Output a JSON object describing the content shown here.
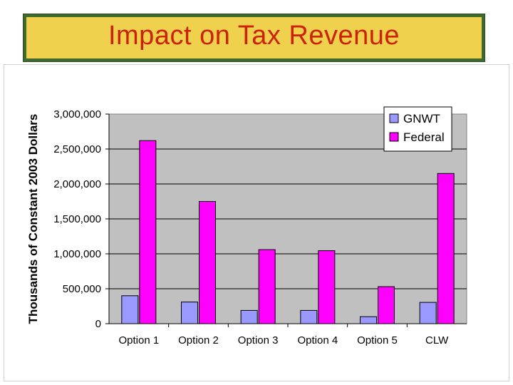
{
  "slide": {
    "title": "Impact on Tax Revenue"
  },
  "colors": {
    "title_bg": "#efd14e",
    "title_border": "#3e6a2f",
    "title_text": "#cc2200",
    "plot_bg": "#c0c0c0",
    "gnwt": "#9999ff",
    "federal": "#ff00ff"
  },
  "chart_data": {
    "type": "bar",
    "title": "",
    "xlabel": "",
    "ylabel": "Thousands of Constant 2003 Dollars",
    "categories": [
      "Option 1",
      "Option 2",
      "Option 3",
      "Option 4",
      "Option 5",
      "CLW"
    ],
    "series": [
      {
        "name": "GNWT",
        "values": [
          400000,
          310000,
          190000,
          190000,
          100000,
          305000
        ]
      },
      {
        "name": "Federal",
        "values": [
          2620000,
          1750000,
          1060000,
          1045000,
          530000,
          2150000
        ]
      }
    ],
    "ylim": [
      0,
      3000000
    ],
    "yticks": [
      0,
      500000,
      1000000,
      1500000,
      2000000,
      2500000,
      3000000
    ],
    "ytick_labels": [
      "0",
      "500,000",
      "1,000,000",
      "1,500,000",
      "2,000,000",
      "2,500,000",
      "3,000,000"
    ],
    "legend_position": "top-right",
    "grid": true
  }
}
